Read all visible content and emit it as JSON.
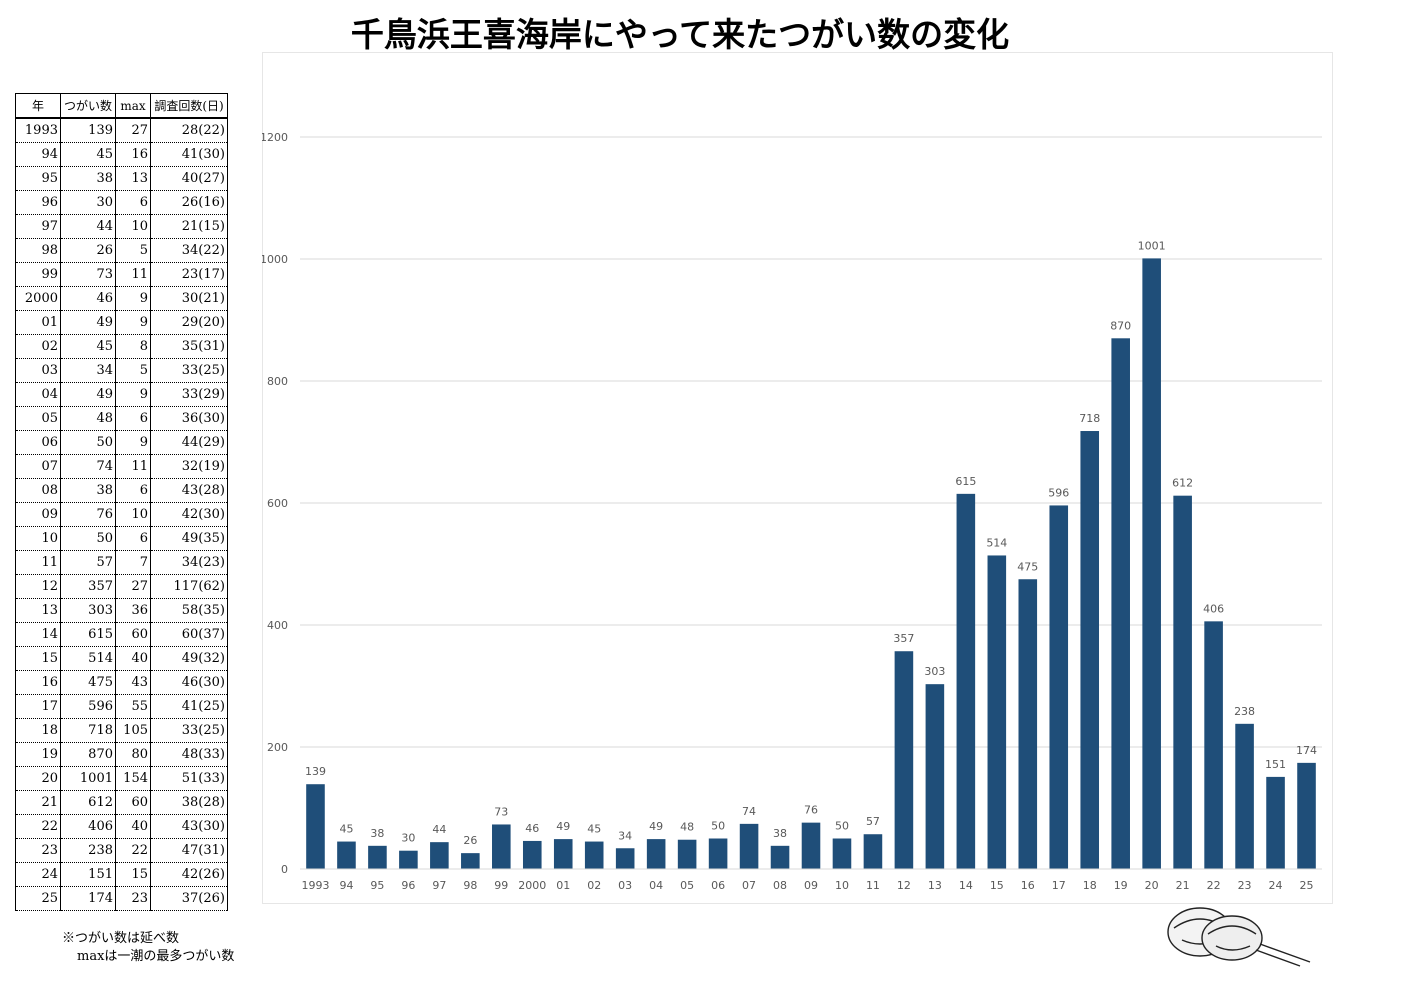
{
  "title": "千鳥浜王喜海岸にやって来たつがい数の変化",
  "table": {
    "headers": [
      "年",
      "つがい数",
      "max",
      "調査回数(日)"
    ],
    "rows": [
      [
        "1993",
        "139",
        "27",
        "28(22)"
      ],
      [
        "94",
        "45",
        "16",
        "41(30)"
      ],
      [
        "95",
        "38",
        "13",
        "40(27)"
      ],
      [
        "96",
        "30",
        "6",
        "26(16)"
      ],
      [
        "97",
        "44",
        "10",
        "21(15)"
      ],
      [
        "98",
        "26",
        "5",
        "34(22)"
      ],
      [
        "99",
        "73",
        "11",
        "23(17)"
      ],
      [
        "2000",
        "46",
        "9",
        "30(21)"
      ],
      [
        "01",
        "49",
        "9",
        "29(20)"
      ],
      [
        "02",
        "45",
        "8",
        "35(31)"
      ],
      [
        "03",
        "34",
        "5",
        "33(25)"
      ],
      [
        "04",
        "49",
        "9",
        "33(29)"
      ],
      [
        "05",
        "48",
        "6",
        "36(30)"
      ],
      [
        "06",
        "50",
        "9",
        "44(29)"
      ],
      [
        "07",
        "74",
        "11",
        "32(19)"
      ],
      [
        "08",
        "38",
        "6",
        "43(28)"
      ],
      [
        "09",
        "76",
        "10",
        "42(30)"
      ],
      [
        "10",
        "50",
        "6",
        "49(35)"
      ],
      [
        "11",
        "57",
        "7",
        "34(23)"
      ],
      [
        "12",
        "357",
        "27",
        "117(62)"
      ],
      [
        "13",
        "303",
        "36",
        "58(35)"
      ],
      [
        "14",
        "615",
        "60",
        "60(37)"
      ],
      [
        "15",
        "514",
        "40",
        "49(32)"
      ],
      [
        "16",
        "475",
        "43",
        "46(30)"
      ],
      [
        "17",
        "596",
        "55",
        "41(25)"
      ],
      [
        "18",
        "718",
        "105",
        "33(25)"
      ],
      [
        "19",
        "870",
        "80",
        "48(33)"
      ],
      [
        "20",
        "1001",
        "154",
        "51(33)"
      ],
      [
        "21",
        "612",
        "60",
        "38(28)"
      ],
      [
        "22",
        "406",
        "40",
        "43(30)"
      ],
      [
        "23",
        "238",
        "22",
        "47(31)"
      ],
      [
        "24",
        "151",
        "15",
        "42(26)"
      ],
      [
        "25",
        "174",
        "23",
        "37(26)"
      ]
    ]
  },
  "notes": {
    "line1": "※つがい数は延べ数",
    "line2": "maxは一潮の最多つがい数"
  },
  "colors": {
    "bar": "#1f4e79",
    "grid": "#d9d9d9",
    "axis_text": "#595959"
  },
  "chart_data": {
    "type": "bar",
    "categories": [
      "1993",
      "94",
      "95",
      "96",
      "97",
      "98",
      "99",
      "2000",
      "01",
      "02",
      "03",
      "04",
      "05",
      "06",
      "07",
      "08",
      "09",
      "10",
      "11",
      "12",
      "13",
      "14",
      "15",
      "16",
      "17",
      "18",
      "19",
      "20",
      "21",
      "22",
      "23",
      "24",
      "25"
    ],
    "values": [
      139,
      45,
      38,
      30,
      44,
      26,
      73,
      46,
      49,
      45,
      34,
      49,
      48,
      50,
      74,
      38,
      76,
      50,
      57,
      357,
      303,
      615,
      514,
      475,
      596,
      718,
      870,
      1001,
      612,
      406,
      238,
      151,
      174
    ],
    "yticks": [
      0,
      200,
      400,
      600,
      800,
      1000,
      1200
    ],
    "ylim": [
      0,
      1300
    ],
    "grid": true,
    "data_labels": true,
    "legend": "none"
  }
}
